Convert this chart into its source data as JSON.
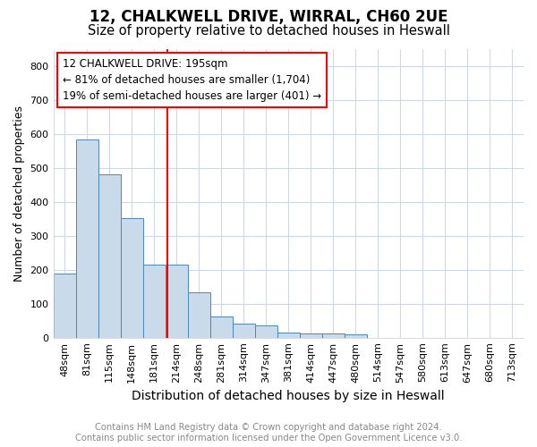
{
  "title1": "12, CHALKWELL DRIVE, WIRRAL, CH60 2UE",
  "title2": "Size of property relative to detached houses in Heswall",
  "xlabel": "Distribution of detached houses by size in Heswall",
  "ylabel": "Number of detached properties",
  "categories": [
    "48sqm",
    "81sqm",
    "115sqm",
    "148sqm",
    "181sqm",
    "214sqm",
    "248sqm",
    "281sqm",
    "314sqm",
    "347sqm",
    "381sqm",
    "414sqm",
    "447sqm",
    "480sqm",
    "514sqm",
    "547sqm",
    "580sqm",
    "613sqm",
    "647sqm",
    "680sqm",
    "713sqm"
  ],
  "values": [
    190,
    585,
    480,
    352,
    215,
    215,
    133,
    62,
    42,
    35,
    15,
    12,
    13,
    10,
    0,
    0,
    0,
    0,
    0,
    0,
    0
  ],
  "bar_color": "#c9daea",
  "bar_edge_color": "#4a86b8",
  "annotation_line1": "12 CHALKWELL DRIVE: 195sqm",
  "annotation_line2": "← 81% of detached houses are smaller (1,704)",
  "annotation_line3": "19% of semi-detached houses are larger (401) →",
  "ylim": [
    0,
    850
  ],
  "yticks": [
    0,
    100,
    200,
    300,
    400,
    500,
    600,
    700,
    800
  ],
  "footnote1": "Contains HM Land Registry data © Crown copyright and database right 2024.",
  "footnote2": "Contains public sector information licensed under the Open Government Licence v3.0.",
  "fig_background": "#ffffff",
  "plot_background": "#ffffff",
  "grid_color": "#d0d8e4",
  "title1_fontsize": 12,
  "title2_fontsize": 10.5,
  "xlabel_fontsize": 10,
  "ylabel_fontsize": 9,
  "tick_fontsize": 8,
  "annotation_fontsize": 8.5,
  "footnote_fontsize": 7.2
}
